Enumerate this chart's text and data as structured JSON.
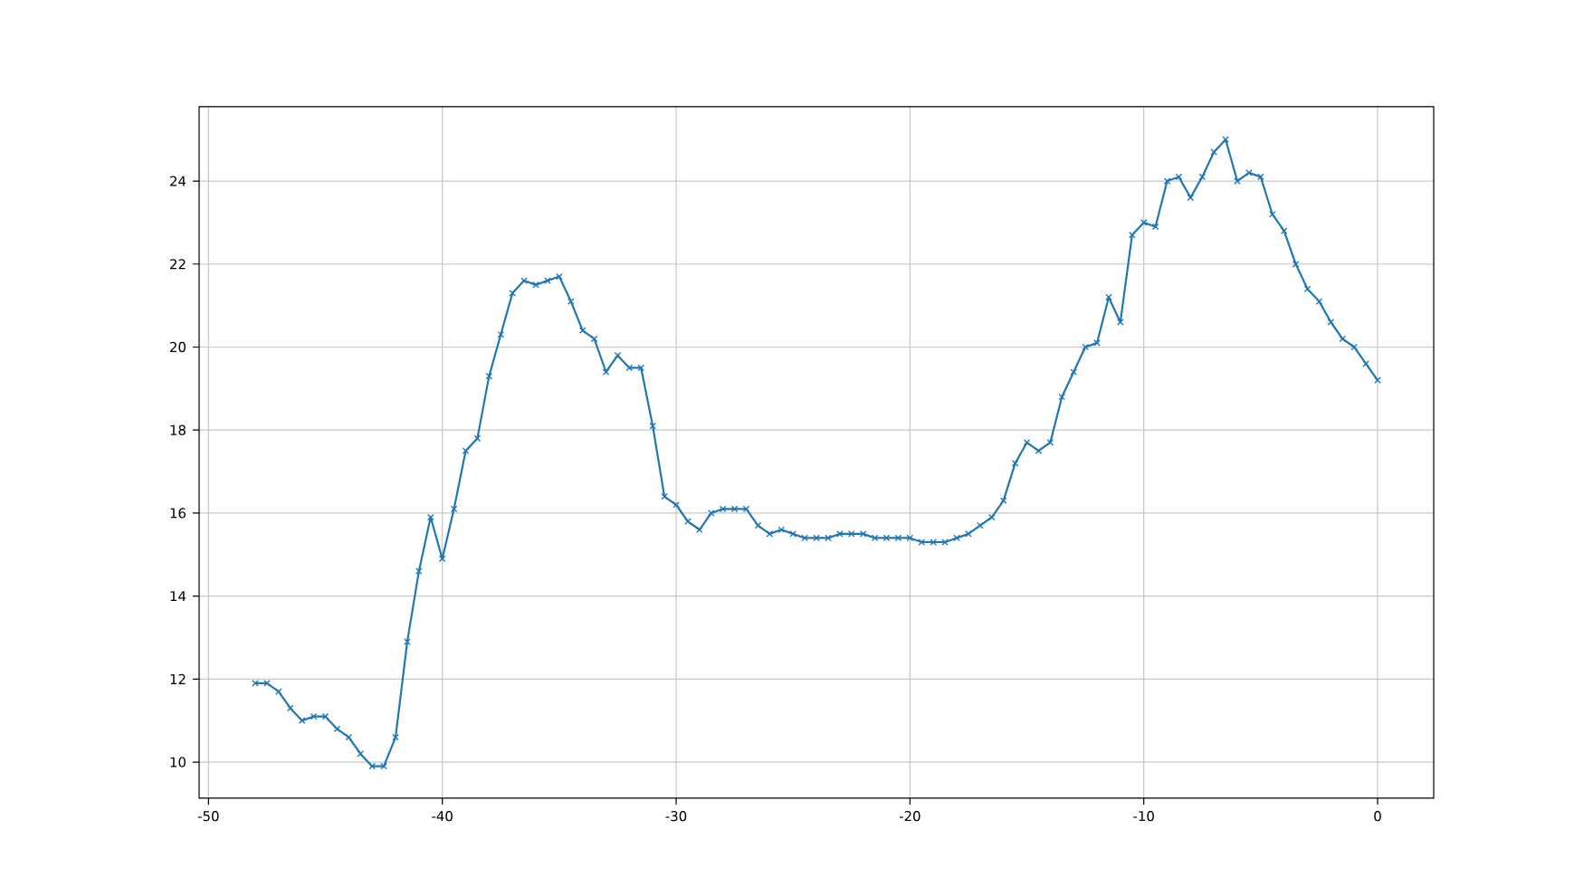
{
  "chart_data": {
    "type": "line",
    "marker": "cross",
    "line_style": "solid",
    "grid": true,
    "xlim": [
      -50.4,
      2.4
    ],
    "ylim": [
      9.13,
      25.79
    ],
    "xticks": [
      -50,
      -40,
      -30,
      -20,
      -10,
      0
    ],
    "yticks": [
      10,
      12,
      14,
      16,
      18,
      20,
      22,
      24
    ],
    "x": [
      -48,
      -47.5,
      -47,
      -46.5,
      -46,
      -45.5,
      -45,
      -44.5,
      -44,
      -43.5,
      -43,
      -42.5,
      -42,
      -41.5,
      -41,
      -40.5,
      -40,
      -39.5,
      -39,
      -38.5,
      -38,
      -37.5,
      -37,
      -36.5,
      -36,
      -35.5,
      -35,
      -34.5,
      -34,
      -33.5,
      -33,
      -32.5,
      -32,
      -31.5,
      -31,
      -30.5,
      -30,
      -29.5,
      -29,
      -28.5,
      -28,
      -27.5,
      -27,
      -26.5,
      -26,
      -25.5,
      -25,
      -24.5,
      -24,
      -23.5,
      -23,
      -22.5,
      -22,
      -21.5,
      -21,
      -20.5,
      -20,
      -19.5,
      -19,
      -18.5,
      -18,
      -17.5,
      -17,
      -16.5,
      -16,
      -15.5,
      -15,
      -14.5,
      -14,
      -13.5,
      -13,
      -12.5,
      -12,
      -11.5,
      -11,
      -10.5,
      -10,
      -9.5,
      -9,
      -8.5,
      -8,
      -7.5,
      -7,
      -6.5,
      -6,
      -5.5,
      -5,
      -4.5,
      -4,
      -3.5,
      -3,
      -2.5,
      -2,
      -1.5,
      -1,
      -0.5,
      0
    ],
    "series": [
      {
        "color": "#1f77b4",
        "values": [
          11.9,
          11.9,
          11.7,
          11.3,
          11.0,
          11.1,
          11.1,
          10.8,
          10.6,
          10.2,
          9.9,
          9.9,
          10.6,
          12.9,
          14.6,
          15.9,
          14.9,
          16.1,
          17.5,
          17.8,
          19.3,
          20.3,
          21.3,
          21.6,
          21.5,
          21.6,
          21.7,
          21.1,
          20.4,
          20.2,
          19.4,
          19.8,
          19.5,
          19.5,
          18.1,
          16.4,
          16.2,
          15.8,
          15.6,
          16.0,
          16.1,
          16.1,
          16.1,
          15.7,
          15.5,
          15.6,
          15.5,
          15.4,
          15.4,
          15.4,
          15.5,
          15.5,
          15.5,
          15.4,
          15.4,
          15.4,
          15.4,
          15.3,
          15.3,
          15.3,
          15.4,
          15.5,
          15.7,
          15.9,
          16.3,
          17.2,
          17.7,
          17.5,
          17.7,
          18.8,
          19.4,
          20.0,
          20.1,
          21.2,
          20.6,
          22.7,
          23.0,
          22.9,
          24.0,
          24.1,
          23.6,
          24.1,
          24.7,
          25.0,
          24.0,
          24.2,
          24.1,
          23.2,
          22.8,
          22.0,
          21.4,
          21.1,
          20.6,
          20.2,
          20.0,
          19.6,
          19.2
        ]
      }
    ]
  }
}
